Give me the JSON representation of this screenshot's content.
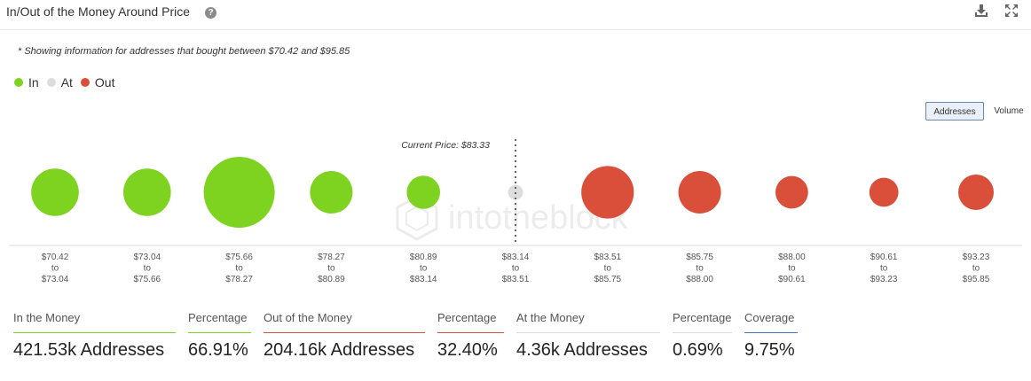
{
  "header": {
    "title": "In/Out of the Money Around Price",
    "help_icon": "?"
  },
  "note": "* Showing information for addresses that bought between $70.42 and $95.85",
  "legend": [
    {
      "label": "In",
      "color": "#7ed321"
    },
    {
      "label": "At",
      "color": "#dddddd"
    },
    {
      "label": "Out",
      "color": "#d94f3a"
    }
  ],
  "toggles": {
    "addresses": "Addresses",
    "volume": "Volume"
  },
  "chart_data": {
    "type": "bubble",
    "current_price_label": "Current Price: $83.33",
    "categories": [
      {
        "from": "$70.42",
        "to": "$73.04",
        "status": "in",
        "relative_size": 0.67
      },
      {
        "from": "$73.04",
        "to": "$75.66",
        "status": "in",
        "relative_size": 0.67
      },
      {
        "from": "$75.66",
        "to": "$78.27",
        "status": "in",
        "relative_size": 1.0
      },
      {
        "from": "$78.27",
        "to": "$80.89",
        "status": "in",
        "relative_size": 0.6
      },
      {
        "from": "$80.89",
        "to": "$83.14",
        "status": "in",
        "relative_size": 0.47
      },
      {
        "from": "$83.14",
        "to": "$83.51",
        "status": "at",
        "relative_size": 0.21
      },
      {
        "from": "$83.51",
        "to": "$85.75",
        "status": "out",
        "relative_size": 0.74
      },
      {
        "from": "$85.75",
        "to": "$88.00",
        "status": "out",
        "relative_size": 0.6
      },
      {
        "from": "$88.00",
        "to": "$90.61",
        "status": "out",
        "relative_size": 0.46
      },
      {
        "from": "$90.61",
        "to": "$93.23",
        "status": "out",
        "relative_size": 0.41
      },
      {
        "from": "$93.23",
        "to": "$95.85",
        "status": "out",
        "relative_size": 0.5
      }
    ],
    "colors": {
      "in": "#7ed321",
      "at": "#dddddd",
      "out": "#d94f3a"
    },
    "to_word": "to"
  },
  "stats": [
    {
      "label": "In the Money",
      "value": "421.53k Addresses",
      "color": "#7ed321"
    },
    {
      "label": "Percentage",
      "value": "66.91%",
      "color": "#7ed321"
    },
    {
      "label": "Out of the Money",
      "value": "204.16k Addresses",
      "color": "#d94f3a"
    },
    {
      "label": "Percentage",
      "value": "32.40%",
      "color": "#d94f3a"
    },
    {
      "label": "At the Money",
      "value": "4.36k Addresses",
      "color": "#dddddd"
    },
    {
      "label": "Percentage",
      "value": "0.69%",
      "color": "#dddddd"
    },
    {
      "label": "Coverage",
      "value": "9.75%",
      "color": "#3b73c7"
    }
  ]
}
